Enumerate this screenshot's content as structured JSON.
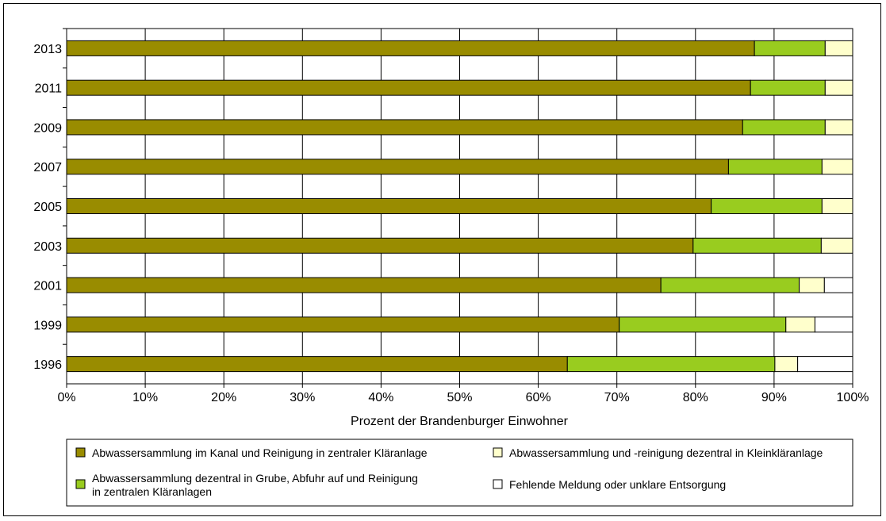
{
  "chart_data": {
    "type": "bar",
    "orientation": "horizontal",
    "stacked": true,
    "categories": [
      "2013",
      "2011",
      "2009",
      "2007",
      "2005",
      "2003",
      "2001",
      "1999",
      "1996"
    ],
    "series": [
      {
        "name": "Abwassersammlung im Kanal und Reinigung in zentraler Kläranlage",
        "color": "#998c00",
        "values": [
          87.5,
          87.0,
          86.0,
          84.2,
          82.0,
          79.7,
          75.6,
          70.3,
          63.7
        ]
      },
      {
        "name": "Abwassersammlung dezentral in Grube, Abfuhr auf und Reinigung in zentralen Kläranlagen",
        "color": "#99cc1f",
        "values": [
          9.0,
          9.5,
          10.5,
          11.9,
          14.1,
          16.3,
          17.6,
          21.2,
          26.4
        ]
      },
      {
        "name": "Abwassersammlung und -reinigung dezentral in Kleinkläranlage",
        "color": "#ffffcc",
        "values": [
          3.5,
          3.5,
          3.5,
          3.9,
          3.9,
          4.0,
          3.2,
          3.7,
          2.9
        ]
      },
      {
        "name": "Fehlende Meldung oder unklare Entsorgung",
        "color": "#ffffff",
        "values": [
          0.0,
          0.0,
          0.0,
          0.0,
          0.0,
          0.0,
          3.6,
          4.8,
          7.0
        ]
      }
    ],
    "xlabel": "Prozent der Brandenburger Einwohner",
    "ylabel": "",
    "xlim": [
      0,
      100
    ],
    "xticks": [
      0,
      10,
      20,
      30,
      40,
      50,
      60,
      70,
      80,
      90,
      100
    ],
    "xtick_labels": [
      "0%",
      "10%",
      "20%",
      "30%",
      "40%",
      "50%",
      "60%",
      "70%",
      "80%",
      "90%",
      "100%"
    ],
    "grid": true,
    "legend_position": "bottom"
  }
}
